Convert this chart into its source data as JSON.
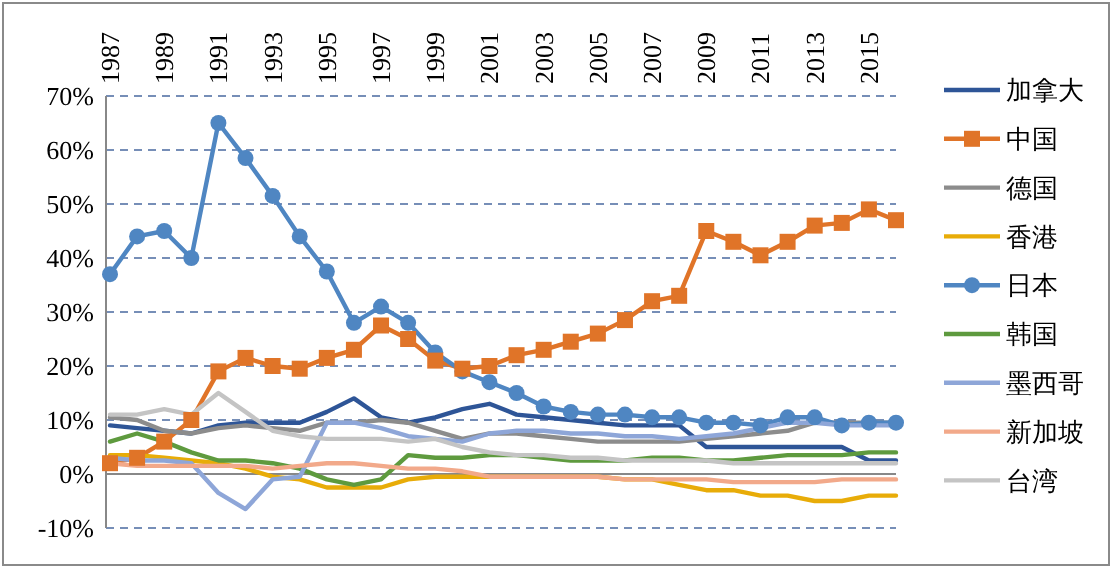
{
  "chart_data": {
    "type": "line",
    "categories": [
      "1987",
      null,
      "1989",
      null,
      "1991",
      null,
      "1993",
      null,
      "1995",
      null,
      "1997",
      null,
      "1999",
      null,
      "2001",
      null,
      "2003",
      null,
      "2005",
      null,
      "2007",
      null,
      "2009",
      null,
      "2011",
      null,
      "2013",
      null,
      "2015",
      null
    ],
    "series": [
      {
        "name": "加拿大",
        "color": "#2e5597",
        "marker": "none",
        "values": [
          9,
          8.5,
          8,
          7.5,
          9,
          9.5,
          9.5,
          9.5,
          11.5,
          14,
          10.5,
          9.5,
          10.5,
          12,
          13,
          11,
          10.5,
          10,
          9.5,
          9,
          9,
          9,
          5,
          5,
          5,
          5,
          5,
          5,
          2.5,
          2.5
        ]
      },
      {
        "name": "中国",
        "color": "#e07428",
        "marker": "square",
        "values": [
          2,
          3,
          6,
          10,
          19,
          21.5,
          20,
          19.5,
          21.5,
          23,
          27.5,
          25,
          21,
          19.5,
          20,
          22,
          23,
          24.5,
          26,
          28.5,
          32,
          33,
          45,
          43,
          40.5,
          43,
          46,
          46.5,
          49,
          47
        ]
      },
      {
        "name": "德国",
        "color": "#8c8c8c",
        "marker": "none",
        "values": [
          10.5,
          10,
          8,
          7.5,
          8.5,
          9,
          8.5,
          8,
          9.5,
          9.5,
          10,
          9.5,
          8,
          6.5,
          7.5,
          7.5,
          7,
          6.5,
          6,
          6,
          6,
          6,
          6.5,
          7,
          7.5,
          8,
          9.5,
          9.5,
          9.5,
          9.5
        ]
      },
      {
        "name": "香港",
        "color": "#e8ac08",
        "marker": "none",
        "values": [
          3.5,
          3.5,
          3,
          2.5,
          2,
          1,
          -0.5,
          -1,
          -2.5,
          -2.5,
          -2.5,
          -1,
          -0.5,
          -0.5,
          -0.5,
          -0.5,
          -0.5,
          -0.5,
          -0.5,
          -1,
          -1,
          -2,
          -3,
          -3,
          -4,
          -4,
          -5,
          -5,
          -4,
          -4
        ]
      },
      {
        "name": "日本",
        "color": "#4f86c2",
        "marker": "circle",
        "values": [
          37,
          44,
          45,
          40,
          65,
          58.5,
          51.5,
          44,
          37.5,
          28,
          31,
          28,
          22.5,
          19,
          17,
          15,
          12.5,
          11.5,
          11,
          11,
          10.5,
          10.5,
          9.5,
          9.5,
          9,
          10.5,
          10.5,
          9,
          9.5,
          9.5
        ]
      },
      {
        "name": "韩国",
        "color": "#5e9a3e",
        "marker": "none",
        "values": [
          6,
          7.5,
          6,
          4,
          2.5,
          2.5,
          2,
          1,
          -1,
          -2,
          -1,
          3.5,
          3,
          3,
          3.5,
          3.5,
          3,
          2.5,
          2.5,
          2.5,
          3,
          3,
          2.5,
          2.5,
          3,
          3.5,
          3.5,
          3.5,
          4,
          4
        ]
      },
      {
        "name": "墨西哥",
        "color": "#8ea6d8",
        "marker": "none",
        "values": [
          3,
          2.5,
          2.5,
          2,
          -3.5,
          -6.5,
          -1,
          -0.5,
          9.5,
          9.5,
          8.5,
          7,
          6.5,
          6,
          7.5,
          8,
          8,
          7.5,
          7.5,
          7,
          7,
          6.5,
          7,
          7.5,
          8.5,
          9.5,
          9.5,
          9,
          9,
          9
        ]
      },
      {
        "name": "新加坡",
        "color": "#f2a98a",
        "marker": "none",
        "values": [
          2,
          1.5,
          1.5,
          1.5,
          1.5,
          1.5,
          1,
          1.5,
          2,
          2,
          1.5,
          1,
          1,
          0.5,
          -0.5,
          -0.5,
          -0.5,
          -0.5,
          -0.5,
          -1,
          -1,
          -1,
          -1,
          -1.5,
          -1.5,
          -1.5,
          -1.5,
          -1,
          -1,
          -1
        ]
      },
      {
        "name": "台湾",
        "color": "#c4c4c4",
        "marker": "none",
        "values": [
          11,
          11,
          12,
          11,
          15,
          11.5,
          8,
          7,
          6.5,
          6.5,
          6.5,
          6,
          6.5,
          5,
          4,
          3.5,
          3.5,
          3,
          3,
          2.5,
          2.5,
          2.5,
          2.5,
          2,
          2,
          2,
          2,
          2,
          2,
          2
        ]
      }
    ],
    "ylim": [
      -10,
      70
    ],
    "yticks": [
      {
        "value": -10,
        "label": "-10%"
      },
      {
        "value": 0,
        "label": "0%"
      },
      {
        "value": 10,
        "label": "10%"
      },
      {
        "value": 20,
        "label": "20%"
      },
      {
        "value": 30,
        "label": "30%"
      },
      {
        "value": 40,
        "label": "40%"
      },
      {
        "value": 50,
        "label": "50%"
      },
      {
        "value": 60,
        "label": "60%"
      },
      {
        "value": 70,
        "label": "70%"
      }
    ],
    "grid": "y",
    "line_style": "solid",
    "legend": "right"
  }
}
